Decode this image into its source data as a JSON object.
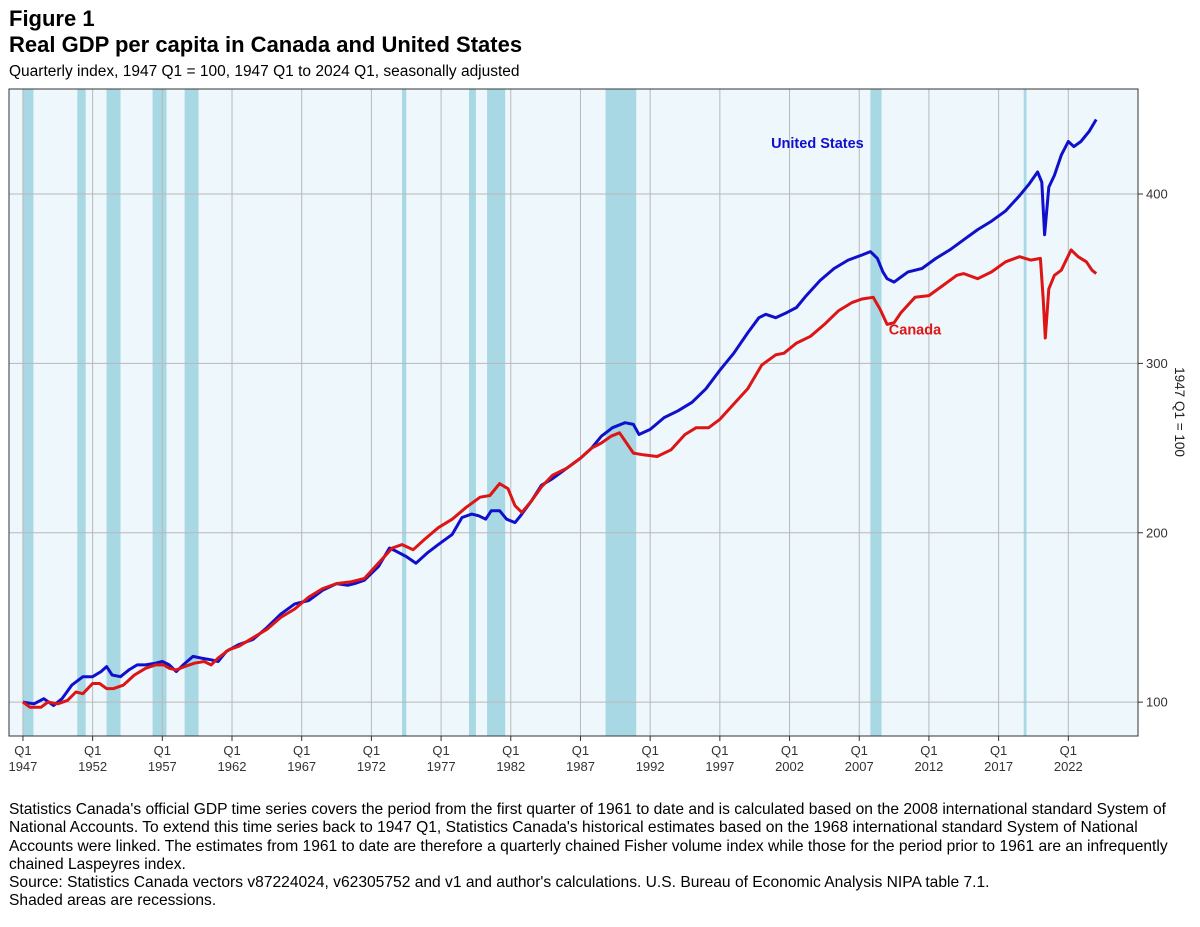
{
  "figure": {
    "label": "Figure 1",
    "title": "Real GDP per capita in Canada and United States",
    "subtitle": "Quarterly index, 1947 Q1 = 100, 1947 Q1 to 2024 Q1, seasonally adjusted"
  },
  "notes": {
    "paragraph": "Statistics Canada's official GDP time series covers the period from the first quarter of 1961 to date and is calculated based on the 2008 international standard System of National Accounts. To extend this time series back to 1947 Q1, Statistics Canada's historical estimates based on the 1968 international standard System of National Accounts were linked. The estimates from 1961 to date are therefore a quarterly chained Fisher volume index while those for the period prior to 1961 are an infrequently chained Laspeyres index.",
    "source": "Source: Statistics Canada vectors v87224024, v62305752 and v1 and author's calculations. U.S. Bureau of Economic Analysis NIPA table 7.1.",
    "shading": "Shaded areas are recessions."
  },
  "chart_data": {
    "type": "line",
    "title": "Real GDP per capita in Canada and United States",
    "xlabel": "",
    "ylabel": "1947 Q1 = 100",
    "xlim": [
      1946.0,
      2027.0
    ],
    "ylim": [
      80,
      462
    ],
    "y_axis_side": "right",
    "yticks": [
      100,
      200,
      300,
      400
    ],
    "xticks": [
      {
        "x": 1947,
        "quarter": "Q1",
        "year": "1947"
      },
      {
        "x": 1952,
        "quarter": "Q1",
        "year": "1952"
      },
      {
        "x": 1957,
        "quarter": "Q1",
        "year": "1957"
      },
      {
        "x": 1962,
        "quarter": "Q1",
        "year": "1962"
      },
      {
        "x": 1967,
        "quarter": "Q1",
        "year": "1967"
      },
      {
        "x": 1972,
        "quarter": "Q1",
        "year": "1972"
      },
      {
        "x": 1977,
        "quarter": "Q1",
        "year": "1977"
      },
      {
        "x": 1982,
        "quarter": "Q1",
        "year": "1982"
      },
      {
        "x": 1987,
        "quarter": "Q1",
        "year": "1987"
      },
      {
        "x": 1992,
        "quarter": "Q1",
        "year": "1992"
      },
      {
        "x": 1997,
        "quarter": "Q1",
        "year": "1997"
      },
      {
        "x": 2002,
        "quarter": "Q1",
        "year": "2002"
      },
      {
        "x": 2007,
        "quarter": "Q1",
        "year": "2007"
      },
      {
        "x": 2012,
        "quarter": "Q1",
        "year": "2012"
      },
      {
        "x": 2017,
        "quarter": "Q1",
        "year": "2017"
      },
      {
        "x": 2022,
        "quarter": "Q1",
        "year": "2022"
      }
    ],
    "grid": true,
    "recessions": [
      [
        1947.0,
        1947.75
      ],
      [
        1950.9,
        1951.5
      ],
      [
        1953.0,
        1954.0
      ],
      [
        1956.3,
        1957.3
      ],
      [
        1958.6,
        1959.6
      ],
      [
        1974.2,
        1974.5
      ],
      [
        1979.0,
        1979.5
      ],
      [
        1980.3,
        1981.6
      ],
      [
        1988.8,
        1991.0
      ],
      [
        2007.8,
        2008.6
      ],
      [
        2018.8,
        2019.0
      ]
    ],
    "series": [
      {
        "name": "United States",
        "color": "#1010cc",
        "label_pos": [
          2004,
          430
        ],
        "points": [
          [
            1947,
            100
          ],
          [
            1947.8,
            99
          ],
          [
            1948.5,
            102
          ],
          [
            1949.2,
            98
          ],
          [
            1949.8,
            102
          ],
          [
            1950.5,
            110
          ],
          [
            1951.3,
            115
          ],
          [
            1952,
            115
          ],
          [
            1952.6,
            118
          ],
          [
            1953,
            121
          ],
          [
            1953.4,
            116
          ],
          [
            1954,
            115
          ],
          [
            1954.6,
            119
          ],
          [
            1955.2,
            122
          ],
          [
            1955.8,
            122
          ],
          [
            1956.5,
            123
          ],
          [
            1957,
            124
          ],
          [
            1957.5,
            122
          ],
          [
            1958,
            118
          ],
          [
            1958.5,
            122
          ],
          [
            1959.2,
            127
          ],
          [
            1959.8,
            126
          ],
          [
            1960.5,
            125
          ],
          [
            1961,
            124
          ],
          [
            1961.6,
            130
          ],
          [
            1962.5,
            134
          ],
          [
            1963.5,
            137
          ],
          [
            1964.5,
            144
          ],
          [
            1965.5,
            152
          ],
          [
            1966.5,
            158
          ],
          [
            1967.5,
            160
          ],
          [
            1968.5,
            166
          ],
          [
            1969.5,
            170
          ],
          [
            1970.3,
            169
          ],
          [
            1970.8,
            170
          ],
          [
            1971.5,
            172
          ],
          [
            1972.5,
            180
          ],
          [
            1973.3,
            191
          ],
          [
            1973.8,
            189
          ],
          [
            1974.5,
            186
          ],
          [
            1975.2,
            182
          ],
          [
            1976,
            188
          ],
          [
            1976.8,
            193
          ],
          [
            1977.8,
            199
          ],
          [
            1978.5,
            209
          ],
          [
            1979.2,
            211
          ],
          [
            1979.7,
            210
          ],
          [
            1980.2,
            208
          ],
          [
            1980.6,
            213
          ],
          [
            1981.2,
            213
          ],
          [
            1981.7,
            208
          ],
          [
            1982.3,
            206
          ],
          [
            1982.7,
            210
          ],
          [
            1983.5,
            219
          ],
          [
            1984.2,
            228
          ],
          [
            1985,
            232
          ],
          [
            1986,
            238
          ],
          [
            1987,
            244
          ],
          [
            1987.8,
            250
          ],
          [
            1988.5,
            257
          ],
          [
            1989.3,
            262
          ],
          [
            1990.2,
            265
          ],
          [
            1990.8,
            264
          ],
          [
            1991.2,
            258
          ],
          [
            1992,
            261
          ],
          [
            1993,
            268
          ],
          [
            1994,
            272
          ],
          [
            1995,
            277
          ],
          [
            1996,
            285
          ],
          [
            1997,
            296
          ],
          [
            1998,
            306
          ],
          [
            1999,
            318
          ],
          [
            1999.8,
            327
          ],
          [
            2000.3,
            329
          ],
          [
            2001,
            327
          ],
          [
            2001.8,
            330
          ],
          [
            2002.5,
            333
          ],
          [
            2003.2,
            340
          ],
          [
            2004.2,
            349
          ],
          [
            2005.2,
            356
          ],
          [
            2006.2,
            361
          ],
          [
            2007.2,
            364
          ],
          [
            2007.8,
            366
          ],
          [
            2008.3,
            362
          ],
          [
            2008.7,
            354
          ],
          [
            2009,
            350
          ],
          [
            2009.5,
            348
          ],
          [
            2010,
            351
          ],
          [
            2010.5,
            354
          ],
          [
            2011.5,
            356
          ],
          [
            2012.5,
            362
          ],
          [
            2013.5,
            367
          ],
          [
            2014.5,
            373
          ],
          [
            2015.5,
            379
          ],
          [
            2016.5,
            384
          ],
          [
            2017.5,
            390
          ],
          [
            2018.5,
            399
          ],
          [
            2019.2,
            406
          ],
          [
            2019.8,
            413
          ],
          [
            2020.1,
            407
          ],
          [
            2020.3,
            376
          ],
          [
            2020.6,
            404
          ],
          [
            2021,
            411
          ],
          [
            2021.5,
            423
          ],
          [
            2022,
            431
          ],
          [
            2022.4,
            428
          ],
          [
            2022.9,
            431
          ],
          [
            2023.5,
            437
          ],
          [
            2024,
            444
          ]
        ]
      },
      {
        "name": "Canada",
        "color": "#dd1515",
        "label_pos": [
          2011,
          320
        ],
        "points": [
          [
            1947,
            100
          ],
          [
            1947.5,
            97
          ],
          [
            1948.3,
            97
          ],
          [
            1948.8,
            100
          ],
          [
            1949.5,
            99
          ],
          [
            1950.2,
            101
          ],
          [
            1950.8,
            106
          ],
          [
            1951.3,
            105
          ],
          [
            1952,
            111
          ],
          [
            1952.5,
            111
          ],
          [
            1953,
            108
          ],
          [
            1953.5,
            108
          ],
          [
            1954.2,
            110
          ],
          [
            1955,
            116
          ],
          [
            1955.8,
            120
          ],
          [
            1956.5,
            122
          ],
          [
            1957.1,
            122
          ],
          [
            1957.5,
            120
          ],
          [
            1958,
            119
          ],
          [
            1958.6,
            121
          ],
          [
            1959.3,
            123
          ],
          [
            1960,
            124
          ],
          [
            1960.5,
            122
          ],
          [
            1961,
            126
          ],
          [
            1961.8,
            131
          ],
          [
            1962.5,
            133
          ],
          [
            1963.5,
            138
          ],
          [
            1964.5,
            143
          ],
          [
            1965.5,
            150
          ],
          [
            1966.5,
            155
          ],
          [
            1967.5,
            162
          ],
          [
            1968.5,
            167
          ],
          [
            1969.5,
            170
          ],
          [
            1970.5,
            171
          ],
          [
            1971.5,
            173
          ],
          [
            1972.5,
            182
          ],
          [
            1973.5,
            191
          ],
          [
            1974.2,
            193
          ],
          [
            1975,
            190
          ],
          [
            1975.8,
            196
          ],
          [
            1976.8,
            203
          ],
          [
            1977.8,
            208
          ],
          [
            1978.8,
            215
          ],
          [
            1979.8,
            221
          ],
          [
            1980.5,
            222
          ],
          [
            1981.2,
            229
          ],
          [
            1981.8,
            226
          ],
          [
            1982.3,
            216
          ],
          [
            1982.8,
            212
          ],
          [
            1983.5,
            219
          ],
          [
            1984.2,
            227
          ],
          [
            1985,
            234
          ],
          [
            1986,
            238
          ],
          [
            1987,
            244
          ],
          [
            1987.8,
            250
          ],
          [
            1988.5,
            253
          ],
          [
            1989.2,
            257
          ],
          [
            1989.8,
            259
          ],
          [
            1990.3,
            253
          ],
          [
            1990.8,
            247
          ],
          [
            1991.5,
            246
          ],
          [
            1992.5,
            245
          ],
          [
            1993.5,
            249
          ],
          [
            1994.5,
            258
          ],
          [
            1995.3,
            262
          ],
          [
            1996.2,
            262
          ],
          [
            1997,
            267
          ],
          [
            1998,
            276
          ],
          [
            1999,
            285
          ],
          [
            2000,
            299
          ],
          [
            2001,
            305
          ],
          [
            2001.6,
            306
          ],
          [
            2002.5,
            312
          ],
          [
            2003.5,
            316
          ],
          [
            2004.5,
            323
          ],
          [
            2005.5,
            331
          ],
          [
            2006.5,
            336
          ],
          [
            2007.2,
            338
          ],
          [
            2008,
            339
          ],
          [
            2008.5,
            332
          ],
          [
            2009,
            323
          ],
          [
            2009.5,
            324
          ],
          [
            2010,
            330
          ],
          [
            2011,
            339
          ],
          [
            2012,
            340
          ],
          [
            2013,
            346
          ],
          [
            2014,
            352
          ],
          [
            2014.5,
            353
          ],
          [
            2015.5,
            350
          ],
          [
            2016.5,
            354
          ],
          [
            2017.5,
            360
          ],
          [
            2018.5,
            363
          ],
          [
            2019.3,
            361
          ],
          [
            2020,
            362
          ],
          [
            2020.2,
            338
          ],
          [
            2020.35,
            315
          ],
          [
            2020.6,
            344
          ],
          [
            2021,
            352
          ],
          [
            2021.5,
            355
          ],
          [
            2022.2,
            367
          ],
          [
            2022.7,
            363
          ],
          [
            2023.3,
            360
          ],
          [
            2023.7,
            355
          ],
          [
            2024,
            353
          ]
        ]
      }
    ]
  }
}
